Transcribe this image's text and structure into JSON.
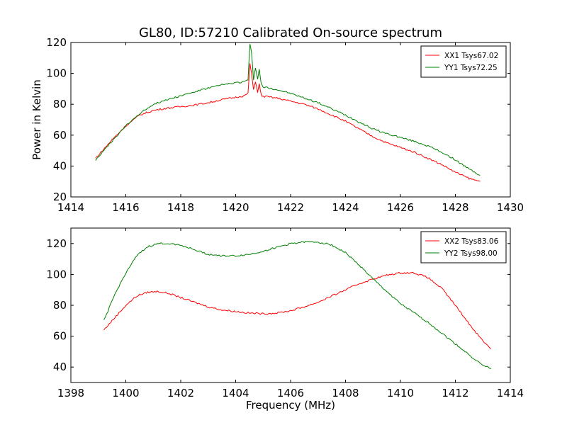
{
  "chart_data": [
    {
      "type": "line",
      "title": "GL80, ID:57210 Calibrated On-source spectrum",
      "xlabel": "",
      "ylabel": "Power in Kelvin",
      "xlim": [
        1414,
        1430
      ],
      "ylim": [
        20,
        120
      ],
      "x_ticks": [
        1414,
        1416,
        1418,
        1420,
        1422,
        1424,
        1426,
        1428,
        1430
      ],
      "y_ticks": [
        20,
        40,
        60,
        80,
        100,
        120
      ],
      "legend_position": "top-right",
      "grid": false,
      "series": [
        {
          "name": "XX1 Tsys67.02",
          "color": "#ff0000",
          "x": [
            1414.9,
            1415.5,
            1416.0,
            1416.5,
            1417.0,
            1417.5,
            1418.0,
            1418.5,
            1419.0,
            1419.5,
            1420.0,
            1420.3,
            1420.45,
            1420.52,
            1420.58,
            1420.65,
            1420.72,
            1420.8,
            1420.86,
            1420.93,
            1421.0,
            1421.1,
            1421.5,
            1422.0,
            1422.5,
            1423.0,
            1423.5,
            1424.0,
            1424.5,
            1425.0,
            1425.5,
            1426.0,
            1426.5,
            1427.0,
            1427.5,
            1428.0,
            1428.5,
            1428.9
          ],
          "y": [
            45,
            57,
            66,
            73,
            76,
            77.5,
            78.5,
            79.5,
            81,
            83,
            84.5,
            85.5,
            87,
            106,
            100,
            89,
            95,
            88,
            93,
            86,
            85,
            85,
            84,
            82,
            80,
            77,
            73,
            69,
            64,
            59,
            55,
            52,
            49,
            45,
            41,
            36,
            32,
            30
          ]
        },
        {
          "name": "YY1 Tsys72.25",
          "color": "#008000",
          "x": [
            1414.9,
            1415.5,
            1416.0,
            1416.5,
            1417.0,
            1417.5,
            1418.0,
            1418.5,
            1419.0,
            1419.5,
            1420.0,
            1420.3,
            1420.45,
            1420.52,
            1420.58,
            1420.65,
            1420.72,
            1420.8,
            1420.86,
            1420.93,
            1421.0,
            1421.1,
            1421.5,
            1422.0,
            1422.5,
            1423.0,
            1423.5,
            1424.0,
            1424.5,
            1425.0,
            1425.5,
            1426.0,
            1426.5,
            1427.0,
            1427.5,
            1428.0,
            1428.5,
            1428.9
          ],
          "y": [
            44,
            56,
            66,
            74,
            80,
            83,
            85.5,
            88,
            90.5,
            92.5,
            94,
            94.5,
            96,
            119,
            113,
            96,
            104,
            96,
            103,
            93,
            91,
            91,
            89.5,
            87,
            84,
            81,
            77,
            73,
            68.5,
            64,
            61,
            58.5,
            56,
            53,
            49,
            44,
            38,
            34
          ]
        }
      ]
    },
    {
      "type": "line",
      "title": "",
      "xlabel": "Frequency (MHz)",
      "ylabel": "",
      "xlim": [
        1398,
        1414
      ],
      "ylim": [
        30,
        130
      ],
      "x_ticks": [
        1398,
        1400,
        1402,
        1404,
        1406,
        1408,
        1410,
        1412,
        1414
      ],
      "y_ticks": [
        40,
        60,
        80,
        100,
        120
      ],
      "legend_position": "top-right",
      "grid": false,
      "series": [
        {
          "name": "XX2 Tsys83.06",
          "color": "#ff0000",
          "x": [
            1399.2,
            1399.6,
            1400.0,
            1400.4,
            1400.8,
            1401.2,
            1401.6,
            1402.0,
            1402.5,
            1403.0,
            1403.5,
            1404.0,
            1404.5,
            1405.0,
            1405.5,
            1406.0,
            1406.5,
            1407.0,
            1407.5,
            1408.0,
            1408.5,
            1409.0,
            1409.5,
            1410.0,
            1410.5,
            1411.0,
            1411.5,
            1412.0,
            1412.5,
            1413.0,
            1413.3
          ],
          "y": [
            64,
            72,
            80,
            86,
            88.5,
            89,
            87.5,
            85,
            82,
            79,
            77,
            76,
            75,
            74.5,
            75,
            76.5,
            79,
            82,
            86,
            90,
            94,
            97,
            99.5,
            101,
            101,
            98,
            91,
            80,
            68,
            57,
            52
          ]
        },
        {
          "name": "YY2 Tsys98.00",
          "color": "#008000",
          "x": [
            1399.2,
            1399.6,
            1400.0,
            1400.4,
            1400.8,
            1401.2,
            1401.6,
            1402.0,
            1402.5,
            1403.0,
            1403.5,
            1404.0,
            1404.5,
            1405.0,
            1405.5,
            1406.0,
            1406.5,
            1407.0,
            1407.5,
            1408.0,
            1408.5,
            1409.0,
            1409.5,
            1410.0,
            1410.5,
            1411.0,
            1411.5,
            1412.0,
            1412.5,
            1413.0,
            1413.3
          ],
          "y": [
            70,
            87,
            101,
            112,
            118,
            120,
            120,
            119,
            116,
            113,
            112,
            112,
            113,
            115,
            117.5,
            120,
            121,
            121,
            119,
            114,
            106,
            97,
            89,
            81,
            75,
            69,
            62,
            55,
            48,
            41,
            39
          ]
        }
      ]
    }
  ]
}
